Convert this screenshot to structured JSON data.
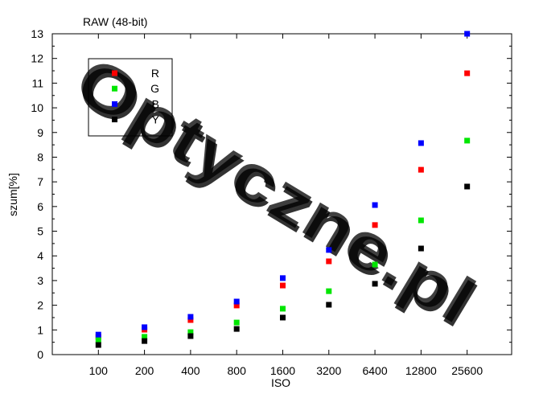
{
  "chart_data": {
    "type": "scatter",
    "title": "RAW (48-bit)",
    "xlabel": "ISO",
    "ylabel": "szum[%]",
    "x": [
      100,
      200,
      400,
      800,
      1600,
      3200,
      6400,
      12800,
      25600
    ],
    "x_scale": "log",
    "xlim": [
      50,
      50000
    ],
    "ylim": [
      0,
      13
    ],
    "yticks": [
      0,
      1,
      2,
      3,
      4,
      5,
      6,
      7,
      8,
      9,
      10,
      11,
      12,
      13
    ],
    "grid": false,
    "legend": "top-left",
    "series": [
      {
        "name": "R",
        "color": "#ff0000",
        "values": [
          0.72,
          1.01,
          1.4,
          1.99,
          2.8,
          3.78,
          5.25,
          7.49,
          11.4
        ]
      },
      {
        "name": "G",
        "color": "#00e600",
        "values": [
          0.59,
          0.72,
          0.91,
          1.3,
          1.86,
          2.57,
          3.65,
          5.44,
          8.67
        ]
      },
      {
        "name": "B",
        "color": "#0000ff",
        "values": [
          0.81,
          1.11,
          1.53,
          2.15,
          3.1,
          4.24,
          6.06,
          8.57,
          13.0
        ]
      },
      {
        "name": "Y",
        "color": "#000000",
        "values": [
          0.39,
          0.55,
          0.75,
          1.04,
          1.5,
          2.02,
          2.87,
          4.3,
          6.81
        ]
      }
    ]
  },
  "watermark": {
    "text": "Optyczne.pl",
    "color": "#f4a8a8",
    "shadow_color": "#eddada"
  }
}
